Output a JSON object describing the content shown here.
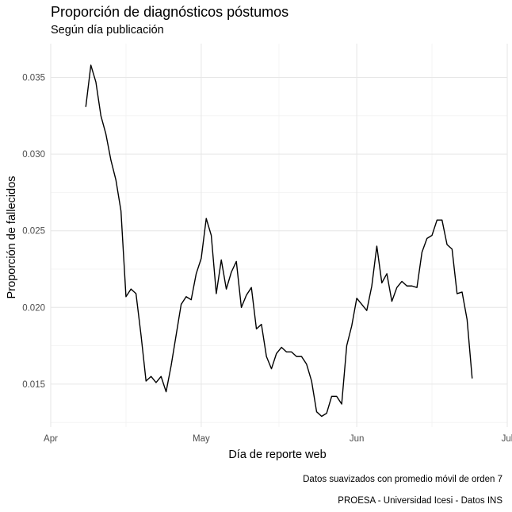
{
  "chart_data": {
    "type": "line",
    "title": "Proporción de diagnósticos póstumos",
    "subtitle": "Según día publicación",
    "xlabel": "Día de reporte web",
    "ylabel": "Proporción de fallecidos",
    "xlim": [
      "2020-04-01",
      "2020-07-01"
    ],
    "ylim": [
      0.0122,
      0.0372
    ],
    "x_ticks": [
      {
        "date": "2020-04-01",
        "label": "Apr"
      },
      {
        "date": "2020-05-01",
        "label": "May"
      },
      {
        "date": "2020-06-01",
        "label": "Jun"
      },
      {
        "date": "2020-07-01",
        "label": "Jul"
      }
    ],
    "y_ticks": [
      {
        "value": 0.015,
        "label": "0.015"
      },
      {
        "value": 0.02,
        "label": "0.020"
      },
      {
        "value": 0.025,
        "label": "0.025"
      },
      {
        "value": 0.03,
        "label": "0.030"
      },
      {
        "value": 0.035,
        "label": "0.035"
      }
    ],
    "grid": true,
    "line_color": "#000000",
    "captions": [
      "Datos suavizados con promedio móvil de orden 7",
      "PROESA - Universidad Icesi - Datos INS"
    ],
    "series": [
      {
        "x": [
          "2020-04-08",
          "2020-04-09",
          "2020-04-10",
          "2020-04-11",
          "2020-04-12",
          "2020-04-13",
          "2020-04-14",
          "2020-04-15",
          "2020-04-16",
          "2020-04-17",
          "2020-04-18",
          "2020-04-19",
          "2020-04-20",
          "2020-04-21",
          "2020-04-22",
          "2020-04-23",
          "2020-04-24",
          "2020-04-25",
          "2020-04-26",
          "2020-04-27",
          "2020-04-28",
          "2020-04-29",
          "2020-04-30",
          "2020-05-01",
          "2020-05-02",
          "2020-05-03",
          "2020-05-04",
          "2020-05-05",
          "2020-05-06",
          "2020-05-07",
          "2020-05-08",
          "2020-05-09",
          "2020-05-10",
          "2020-05-11",
          "2020-05-12",
          "2020-05-13",
          "2020-05-14",
          "2020-05-15",
          "2020-05-16",
          "2020-05-17",
          "2020-05-18",
          "2020-05-19",
          "2020-05-20",
          "2020-05-21",
          "2020-05-22",
          "2020-05-23",
          "2020-05-24",
          "2020-05-25",
          "2020-05-26",
          "2020-05-27",
          "2020-05-28",
          "2020-05-29",
          "2020-05-30",
          "2020-05-31",
          "2020-06-01",
          "2020-06-02",
          "2020-06-03",
          "2020-06-04",
          "2020-06-05",
          "2020-06-06",
          "2020-06-07",
          "2020-06-08",
          "2020-06-09",
          "2020-06-10",
          "2020-06-11",
          "2020-06-12",
          "2020-06-13",
          "2020-06-14",
          "2020-06-15",
          "2020-06-16",
          "2020-06-17",
          "2020-06-18",
          "2020-06-19",
          "2020-06-20",
          "2020-06-21",
          "2020-06-22",
          "2020-06-23",
          "2020-06-24"
        ],
        "values": [
          0.0331,
          0.0358,
          0.0347,
          0.0325,
          0.0313,
          0.0296,
          0.0283,
          0.0263,
          0.0207,
          0.0212,
          0.0209,
          0.0182,
          0.0152,
          0.0155,
          0.0151,
          0.0155,
          0.0145,
          0.0162,
          0.0182,
          0.0202,
          0.0207,
          0.0205,
          0.0222,
          0.0232,
          0.0258,
          0.0247,
          0.0209,
          0.0231,
          0.0212,
          0.0223,
          0.023,
          0.02,
          0.0208,
          0.0213,
          0.0186,
          0.0189,
          0.0168,
          0.016,
          0.017,
          0.0174,
          0.0171,
          0.0171,
          0.0168,
          0.0168,
          0.0163,
          0.0152,
          0.0132,
          0.0129,
          0.0131,
          0.0142,
          0.0142,
          0.0137,
          0.0175,
          0.0188,
          0.0206,
          0.0202,
          0.0198,
          0.0214,
          0.024,
          0.0216,
          0.0222,
          0.0204,
          0.0213,
          0.0217,
          0.0214,
          0.0214,
          0.0213,
          0.0236,
          0.0245,
          0.0247,
          0.0257,
          0.0257,
          0.0241,
          0.0238,
          0.0209,
          0.021,
          0.0192,
          0.0154
        ]
      }
    ]
  }
}
